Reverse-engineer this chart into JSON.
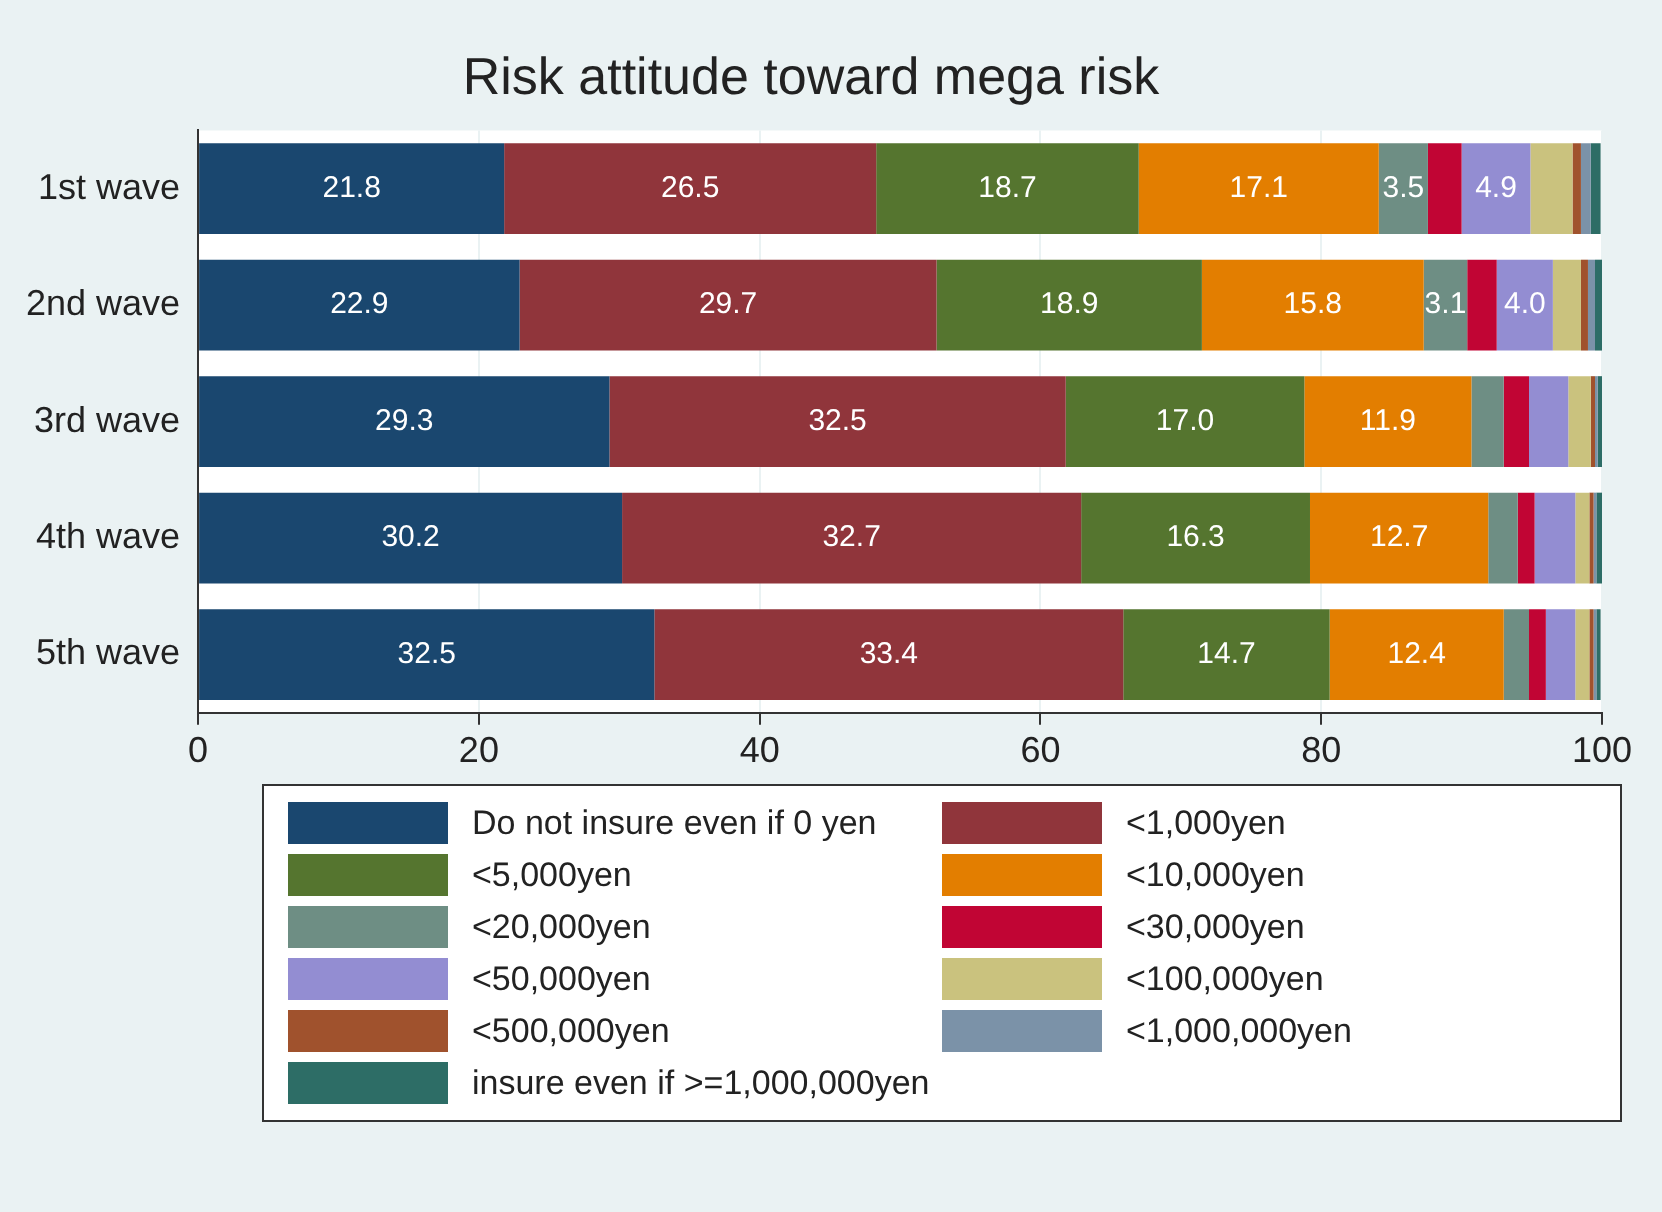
{
  "chart_data": {
    "type": "bar",
    "orientation": "horizontal",
    "stacked": true,
    "title": "Risk attitude toward mega risk",
    "categories": [
      "1st wave",
      "2nd wave",
      "3rd wave",
      "4th wave",
      "5th wave"
    ],
    "xlim": [
      0,
      100
    ],
    "xticks": [
      0,
      20,
      40,
      60,
      80,
      100
    ],
    "grid": "x",
    "legend": "bottom",
    "series": [
      {
        "name": "Do not insure even if 0 yen",
        "color": "#1a476f",
        "values": [
          21.8,
          22.9,
          29.3,
          30.2,
          32.5
        ],
        "value_labels": [
          "21.8",
          "22.9",
          "29.3",
          "30.2",
          "32.5"
        ]
      },
      {
        "name": "<1,000yen",
        "color": "#90353b",
        "values": [
          26.5,
          29.7,
          32.5,
          32.7,
          33.4
        ],
        "value_labels": [
          "26.5",
          "29.7",
          "32.5",
          "32.7",
          "33.4"
        ]
      },
      {
        "name": "<5,000yen",
        "color": "#55752f",
        "values": [
          18.7,
          18.9,
          17.0,
          16.3,
          14.7
        ],
        "value_labels": [
          "18.7",
          "18.9",
          "17.0",
          "16.3",
          "14.7"
        ]
      },
      {
        "name": "<10,000yen",
        "color": "#e37e00",
        "values": [
          17.1,
          15.8,
          11.9,
          12.7,
          12.4
        ],
        "value_labels": [
          "17.1",
          "15.8",
          "11.9",
          "12.7",
          "12.4"
        ]
      },
      {
        "name": "<20,000yen",
        "color": "#6e8e84",
        "values": [
          3.5,
          3.1,
          2.3,
          2.1,
          1.8
        ],
        "value_labels": [
          "3.5",
          "3.1",
          null,
          null,
          null
        ]
      },
      {
        "name": "<30,000yen",
        "color": "#c10534",
        "values": [
          2.4,
          2.1,
          1.8,
          1.2,
          1.2
        ]
      },
      {
        "name": "<50,000yen",
        "color": "#938dd2",
        "values": [
          4.9,
          4.0,
          2.8,
          2.9,
          2.1
        ],
        "value_labels": [
          "4.9",
          "4.0",
          null,
          null,
          null
        ]
      },
      {
        "name": "<100,000yen",
        "color": "#cac27e",
        "values": [
          3.0,
          2.0,
          1.6,
          1.0,
          1.0
        ]
      },
      {
        "name": "<500,000yen",
        "color": "#a0522d",
        "values": [
          0.6,
          0.5,
          0.3,
          0.3,
          0.3
        ]
      },
      {
        "name": "<1,000,000yen",
        "color": "#7b92a8",
        "values": [
          0.7,
          0.5,
          0.2,
          0.2,
          0.2
        ]
      },
      {
        "name": "insure even if >=1,000,000yen",
        "color": "#2d6d66",
        "values": [
          0.7,
          0.5,
          0.3,
          0.4,
          0.3
        ]
      }
    ]
  }
}
